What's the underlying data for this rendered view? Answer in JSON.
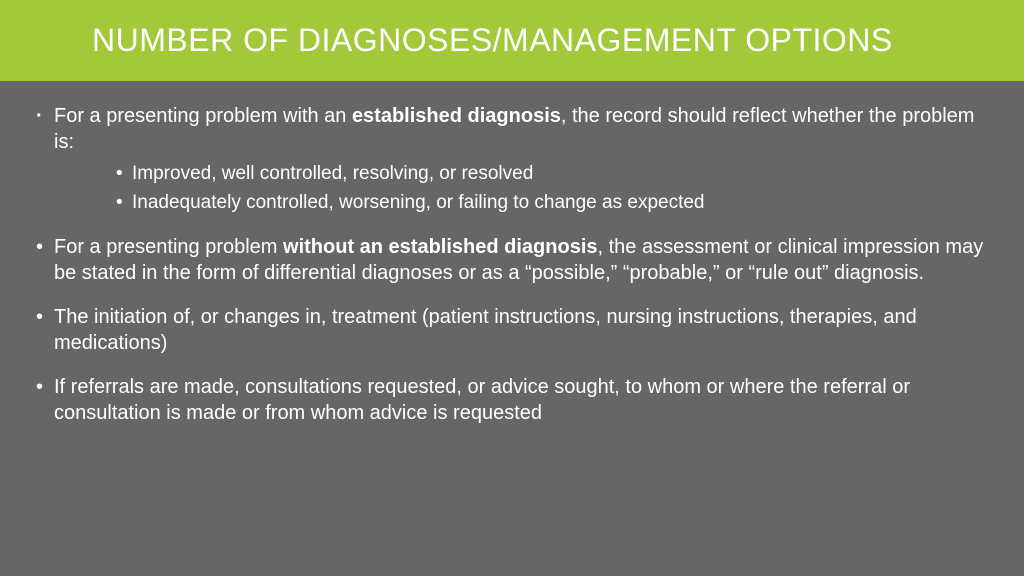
{
  "header": {
    "title": "NUMBER OF DIAGNOSES/MANAGEMENT OPTIONS",
    "bg_color": "#a2c93a",
    "text_color": "#ffffff",
    "title_fontsize": 32
  },
  "body": {
    "bg_color": "#666666",
    "text_color": "#ffffff",
    "fontsize": 20,
    "sub_fontsize": 19
  },
  "bullets": [
    {
      "marker": "dot",
      "segments": [
        {
          "text": "For a presenting problem with an ",
          "bold": false
        },
        {
          "text": "established diagnosis",
          "bold": true
        },
        {
          "text": ", the record should reflect whether the problem is:",
          "bold": false
        }
      ],
      "sub": [
        "Improved, well controlled, resolving, or resolved",
        "Inadequately controlled, worsening, or failing to change as expected"
      ]
    },
    {
      "marker": "bullet",
      "segments": [
        {
          "text": "For a presenting problem ",
          "bold": false
        },
        {
          "text": "without an established diagnosis",
          "bold": true
        },
        {
          "text": ", the assessment or clinical impression may be stated in the form of differential diagnoses or as a “possible,” “probable,” or “rule out” diagnosis.",
          "bold": false
        }
      ]
    },
    {
      "marker": "bullet",
      "segments": [
        {
          "text": " The initiation of, or changes in, treatment  (patient instructions, nursing instructions, therapies, and medications)",
          "bold": false
        }
      ]
    },
    {
      "marker": "bullet",
      "segments": [
        {
          "text": "If referrals are made, consultations requested, or advice sought, to whom or where the referral or consultation is made or from whom advice is requested",
          "bold": false
        }
      ]
    }
  ]
}
